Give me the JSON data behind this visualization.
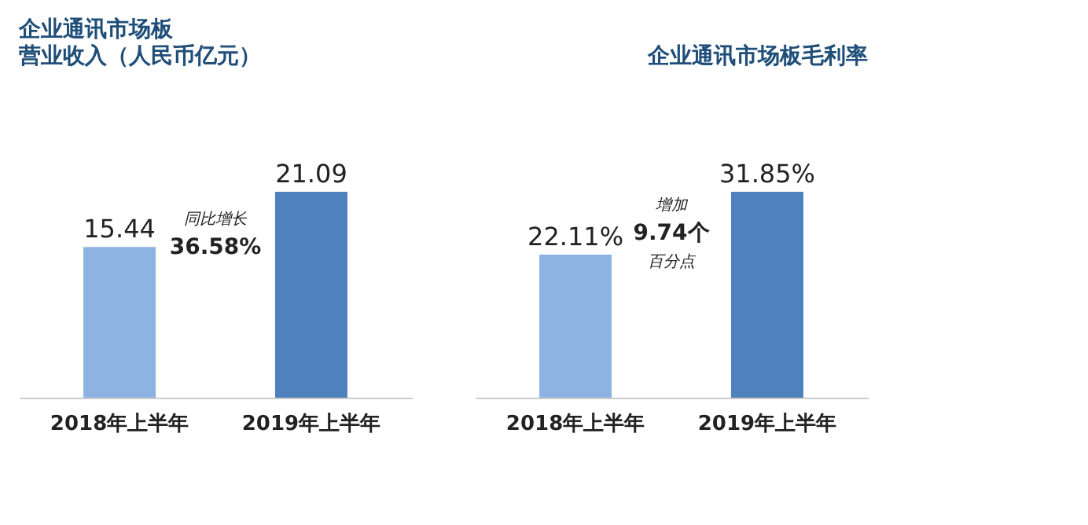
{
  "chart_data": [
    {
      "type": "bar",
      "title": "企业通讯市场板",
      "subtitle": "营业收入（人民币亿元）",
      "categories": [
        "2018年上半年",
        "2019年上半年"
      ],
      "values": [
        15.44,
        21.09
      ],
      "colors": [
        "#8db3e2",
        "#4f81bd"
      ],
      "data_labels": true,
      "annotations": [
        "同比增长",
        "36.58%"
      ]
    },
    {
      "type": "bar",
      "title": "企业通讯市场板毛利率",
      "categories": [
        "2018年上半年",
        "2019年上半年"
      ],
      "values": [
        22.11,
        31.85
      ],
      "value_labels": [
        "22.11%",
        "31.85%"
      ],
      "colors": [
        "#8db3e2",
        "#4f81bd"
      ],
      "annotations": [
        "增加",
        "9.74个",
        "百分点"
      ]
    }
  ]
}
